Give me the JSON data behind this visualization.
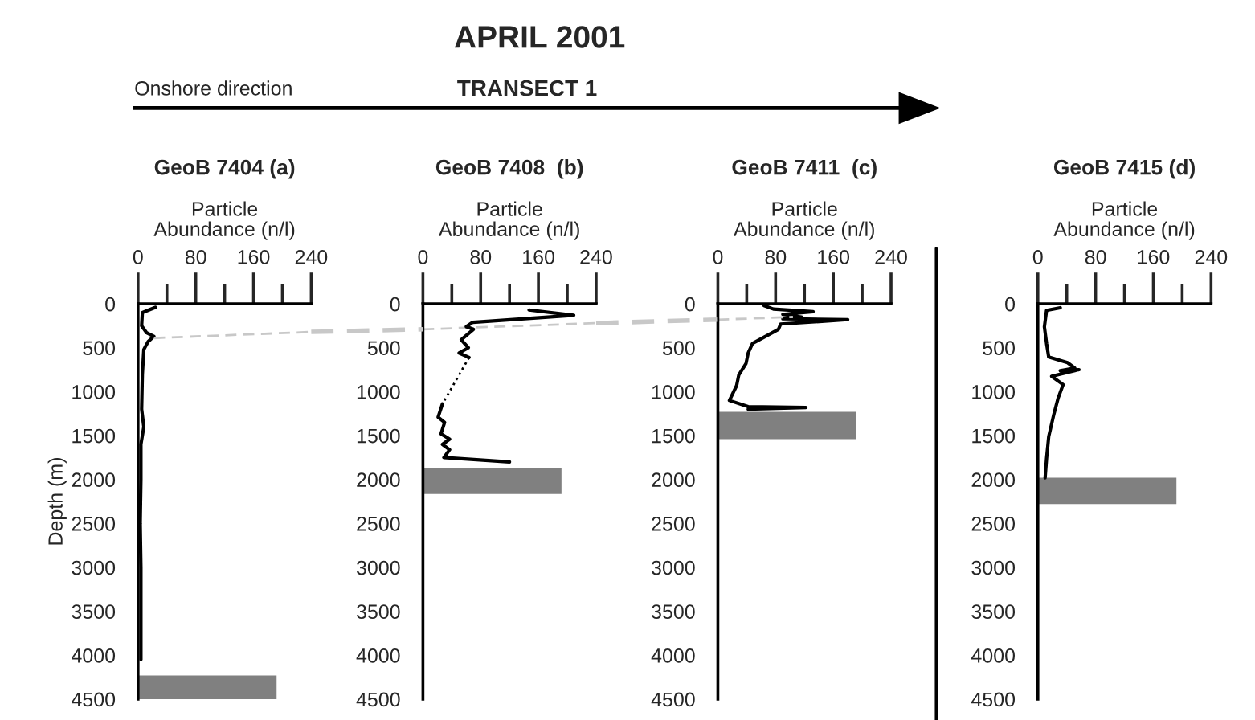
{
  "chart_data": [
    {
      "type": "line",
      "title": "GeoB 7404 (a)",
      "xlabel": "Particle\nAbundance (n/l)",
      "ylabel": "Depth (m)",
      "annotations": [
        "APRIL 2001",
        "TRANSECT 1",
        "Onshore direction"
      ],
      "series": [
        {
          "color": "#000000",
          "x": [
            24,
            6,
            5,
            12,
            22,
            14,
            8,
            6,
            5,
            8,
            4,
            4,
            3,
            4,
            4,
            4
          ],
          "values": [
            40,
            100,
            250,
            330,
            370,
            430,
            520,
            800,
            1200,
            1400,
            1600,
            2000,
            2500,
            3000,
            3500,
            4050
          ]
        },
        {
          "color": "#c8c8c8",
          "line_style": "dashed",
          "x": [
            22,
            240
          ],
          "values": [
            390,
            320
          ]
        }
      ],
      "bands": [
        {
          "axis": "y",
          "from": 4230,
          "to": 4500,
          "color": "#808080"
        }
      ],
      "xlim": [
        0,
        240
      ],
      "xticks": [
        0,
        {
          "value": 40,
          "label": null
        },
        80,
        {
          "value": 120,
          "label": null
        },
        160,
        {
          "value": 200,
          "label": null
        },
        240
      ],
      "ylim": [
        4500,
        0
      ],
      "yticks": [
        0,
        500,
        1000,
        1500,
        2000,
        2500,
        3000,
        3500,
        4000,
        4500
      ],
      "grid": false,
      "legend": false
    },
    {
      "type": "line",
      "title": "GeoB 7408  (b)",
      "xlabel": "Particle\nAbundance (n/l)",
      "series": [
        {
          "color": "#c8c8c8",
          "line_style": "dashed",
          "x": [
            0,
            240
          ],
          "values": [
            290,
            220
          ]
        },
        {
          "color": "#000000",
          "x": [
            147,
            209,
            69,
            60,
            70,
            53,
            63,
            50,
            64
          ],
          "values": [
            70,
            130,
            210,
            260,
            290,
            410,
            500,
            560,
            610
          ]
        },
        {
          "color": "#000000",
          "line_style": "dotted",
          "x": [
            64,
            27
          ],
          "values": [
            610,
            1140
          ]
        },
        {
          "color": "#000000",
          "x": [
            27,
            21,
            30,
            25,
            37,
            27,
            37,
            29,
            120
          ],
          "values": [
            1140,
            1290,
            1350,
            1480,
            1540,
            1600,
            1660,
            1750,
            1800
          ]
        }
      ],
      "bands": [
        {
          "axis": "y",
          "from": 1870,
          "to": 2165,
          "color": "#808080"
        }
      ],
      "xlim": [
        0,
        240
      ],
      "xticks": [
        0,
        {
          "value": 40,
          "label": null
        },
        80,
        {
          "value": 120,
          "label": null
        },
        160,
        {
          "value": 200,
          "label": null
        },
        240
      ],
      "ylim": [
        4500,
        0
      ],
      "yticks": [
        0,
        500,
        1000,
        1500,
        2000,
        2500,
        3000,
        3500,
        4000,
        4500
      ],
      "grid": false,
      "legend": false
    },
    {
      "type": "line",
      "title": "GeoB 7411  (c)",
      "xlabel": "Particle\nAbundance (n/l)",
      "series": [
        {
          "color": "#000000",
          "x": [
            64,
            77,
            132,
            90,
            116,
            90,
            180,
            87,
            84,
            64,
            48,
            42,
            39,
            29,
            26,
            16,
            42,
            122,
            42
          ],
          "values": [
            20,
            60,
            90,
            120,
            150,
            170,
            180,
            230,
            290,
            380,
            450,
            560,
            680,
            810,
            930,
            1100,
            1170,
            1180,
            1200
          ]
        },
        {
          "color": "#c8c8c8",
          "line_style": "dashed",
          "x": [
            0,
            104
          ],
          "values": [
            180,
            150
          ]
        }
      ],
      "bands": [
        {
          "axis": "y",
          "from": 1230,
          "to": 1540,
          "color": "#808080"
        }
      ],
      "xlim": [
        0,
        240
      ],
      "xticks": [
        0,
        {
          "value": 40,
          "label": null
        },
        80,
        {
          "value": 120,
          "label": null
        },
        160,
        {
          "value": 200,
          "label": null
        },
        240
      ],
      "ylim": [
        4500,
        0
      ],
      "yticks": [
        0,
        500,
        1000,
        1500,
        2000,
        2500,
        3000,
        3500,
        4000,
        4500
      ],
      "grid": false,
      "legend": false
    },
    {
      "type": "line",
      "title": "GeoB 7415 (d)",
      "xlabel": "Particle\nAbundance (n/l)",
      "series": [
        {
          "color": "#000000",
          "x": [
            31,
            12,
            9,
            12,
            15,
            41,
            51,
            31,
            57,
            19,
            35,
            28,
            22,
            15,
            12,
            10
          ],
          "values": [
            44,
            75,
            262,
            450,
            606,
            669,
            731,
            762,
            750,
            825,
            919,
            1075,
            1262,
            1512,
            1762,
            1981
          ]
        }
      ],
      "bands": [
        {
          "axis": "y",
          "from": 1980,
          "to": 2280,
          "color": "#808080"
        }
      ],
      "xlim": [
        0,
        240
      ],
      "xticks": [
        0,
        {
          "value": 40,
          "label": null
        },
        80,
        {
          "value": 120,
          "label": null
        },
        160,
        {
          "value": 200,
          "label": null
        },
        240
      ],
      "ylim": [
        4500,
        0
      ],
      "yticks": [
        0,
        500,
        1000,
        1500,
        2000,
        2500,
        3000,
        3500,
        4000,
        4500
      ],
      "grid": false,
      "legend": false
    }
  ]
}
